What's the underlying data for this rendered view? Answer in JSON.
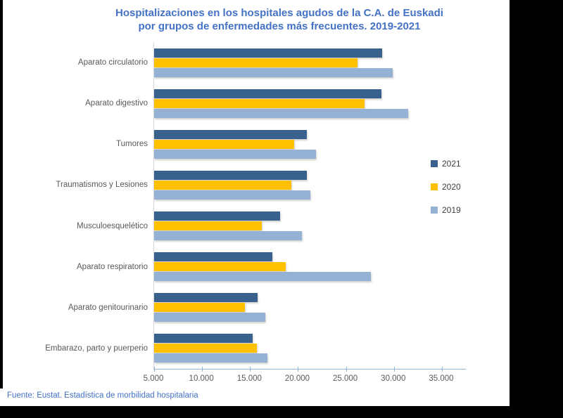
{
  "title": {
    "line1": "Hospitalizaciones en los hospitales agudos de la C.A. de Euskadi",
    "line2": "por grupos de enfermedades más frecuentes. 2019-2021"
  },
  "source_note": "Fuente: Eustat. Estadística de morbilidad hospitalaria",
  "colors": {
    "title_text": "#4472C4",
    "source_text": "#4472C4",
    "axis_line": "#95B3D7",
    "category_text": "#595959",
    "tick_text": "#595959",
    "legend_text": "#404040",
    "series_2021": "#38618E",
    "series_2020": "#FFC000",
    "series_2019": "#95B2D5"
  },
  "chart_data": {
    "type": "bar",
    "orientation": "horizontal",
    "title": "Hospitalizaciones en los hospitales agudos de la C.A. de Euskadi por grupos de enfermedades más frecuentes. 2019-2021",
    "categories": [
      "Aparato circulatorio",
      "Aparato digestivo",
      "Tumores",
      "Traumatismos y Lesiones",
      "Musculoesquelético",
      "Aparato respiratorio",
      "Aparato genitourinario",
      "Embarazo, parto y puerperio"
    ],
    "series": [
      {
        "name": "2021",
        "color": "#38618E",
        "values": [
          28800,
          28700,
          20900,
          20900,
          18100,
          17300,
          15800,
          15300
        ]
      },
      {
        "name": "2020",
        "color": "#FFC000",
        "values": [
          26200,
          26900,
          19600,
          19300,
          16200,
          18700,
          14500,
          15700
        ]
      },
      {
        "name": "2019",
        "color": "#95B2D5",
        "values": [
          29900,
          31500,
          21900,
          21300,
          20400,
          27600,
          16600,
          16800
        ]
      }
    ],
    "bar_order_top_to_bottom": [
      "2021",
      "2020",
      "2019"
    ],
    "xlim": [
      5000,
      37500
    ],
    "x_tick_step": 5000,
    "x_tick_values": [
      5000,
      10000,
      15000,
      20000,
      25000,
      30000,
      35000
    ],
    "x_tick_labels": [
      "5.000",
      "10.000",
      "15.000",
      "20.000",
      "25.000",
      "30.000",
      "35.000"
    ],
    "xlabel": "",
    "ylabel": "",
    "grid": "off",
    "legend_position": "right-middle"
  }
}
